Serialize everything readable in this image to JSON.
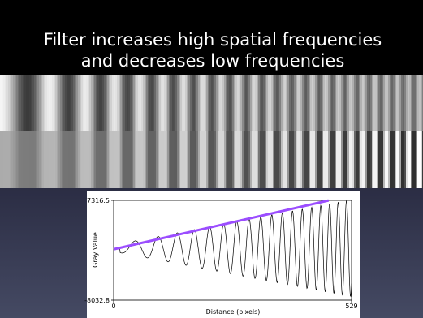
{
  "title_lines": [
    "Filter increases high spatial frequencies",
    "and decreases low frequencies"
  ],
  "chart_data": {
    "type": "line",
    "xlabel": "Distance (pixels)",
    "ylabel": "Gray Value",
    "xlim": [
      0,
      529
    ],
    "xticks": [
      0,
      529
    ],
    "ylim": [
      -8032.8,
      7316.5
    ],
    "yticks": [
      -8032.8,
      7316.5
    ],
    "series": [
      {
        "color": "#9b4dff",
        "x": [
          0,
          478
        ],
        "values": [
          -200,
          7300
        ]
      }
    ]
  }
}
